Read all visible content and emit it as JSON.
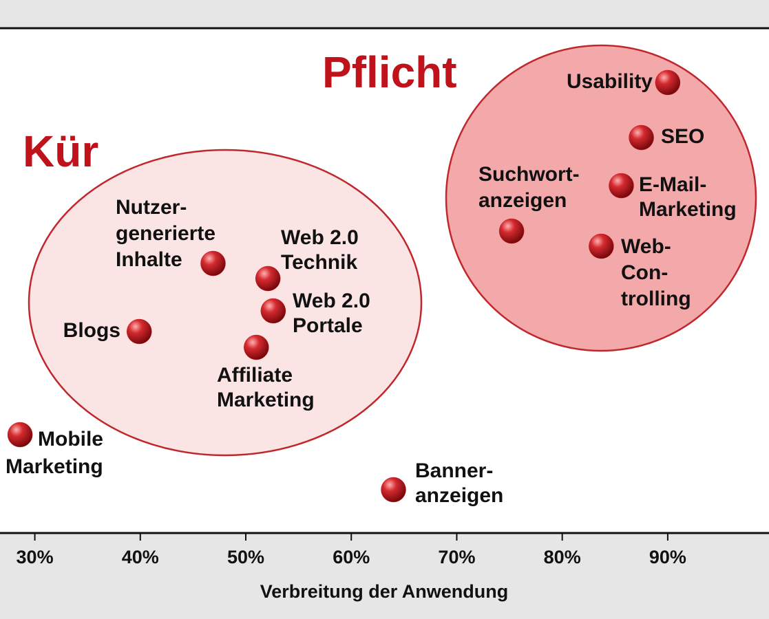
{
  "chart_data": {
    "type": "scatter",
    "groups": [
      "Kür",
      "Pflicht"
    ],
    "x_label": "Verbreitung der Anwendung",
    "point_labels": [
      [
        "Usability"
      ],
      [
        "SEO"
      ],
      [
        "E-Mail-",
        "Marketing"
      ],
      [
        "Suchwort-",
        "anzeigen"
      ],
      [
        "Web-",
        "Con-",
        "trolling"
      ],
      [
        "Nutzer-",
        "generierte",
        "Inhalte"
      ],
      [
        "Web 2.0",
        "Technik"
      ],
      [
        "Web 2.0",
        "Portale"
      ],
      [
        "Blogs"
      ],
      [
        "Affiliate",
        "Marketing"
      ],
      [
        "Mobile",
        "Marketing"
      ],
      [
        "Banner-",
        "anzeigen"
      ]
    ],
    "x": [
      90,
      87.5,
      85.6,
      75.2,
      83.7,
      46.9,
      52.1,
      52.6,
      39.9,
      51.0,
      28.6,
      64.0
    ],
    "color": "#c8161d",
    "xlim": [
      26.7,
      99.6
    ],
    "xticks": [
      {
        "value": 30,
        "label": "30%"
      },
      {
        "value": 40,
        "label": "40%"
      },
      {
        "value": 50,
        "label": "50%"
      },
      {
        "value": 60,
        "label": "60%"
      },
      {
        "value": 70,
        "label": "70%"
      },
      {
        "value": 80,
        "label": "80%"
      },
      {
        "value": 90,
        "label": "90%"
      }
    ]
  }
}
